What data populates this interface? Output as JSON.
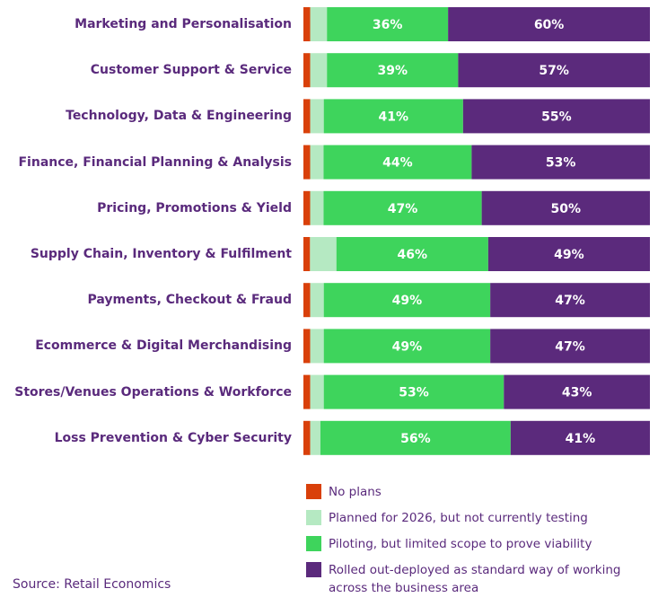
{
  "chart_data": {
    "type": "bar",
    "orientation": "horizontal",
    "stacked": true,
    "categories": [
      "Marketing and Personalisation",
      "Customer Support & Service",
      "Technology, Data & Engineering",
      "Finance, Financial Planning & Analysis",
      "Pricing, Promotions & Yield",
      "Supply Chain, Inventory & Fulfilment",
      "Payments, Checkout & Fraud",
      "Ecommerce & Digital Merchandising",
      "Stores/Venues Operations & Workforce",
      "Loss Prevention & Cyber Security"
    ],
    "series": [
      {
        "name": "No plans",
        "color": "#d9400a",
        "values": [
          2,
          2,
          2,
          2,
          2,
          2,
          2,
          2,
          2,
          2
        ],
        "labeled": false
      },
      {
        "name": "Planned for 2026, but not currently testing",
        "color": "#b5e9c2",
        "values": [
          5,
          5,
          4,
          4,
          4,
          8,
          4,
          4,
          4,
          3
        ],
        "labeled": false
      },
      {
        "name": "Piloting, but limited scope to prove viability",
        "color": "#3ed45c",
        "values": [
          36,
          39,
          41,
          44,
          47,
          46,
          49,
          49,
          53,
          56
        ],
        "labeled": true
      },
      {
        "name": "Rolled out-deployed as standard way of working across the business area",
        "color": "#5b2a7c",
        "values": [
          60,
          57,
          55,
          53,
          50,
          49,
          47,
          47,
          43,
          41
        ],
        "labeled": true
      }
    ],
    "legend_position": "bottom-right",
    "grid": false
  },
  "source": "Source: Retail Economics"
}
